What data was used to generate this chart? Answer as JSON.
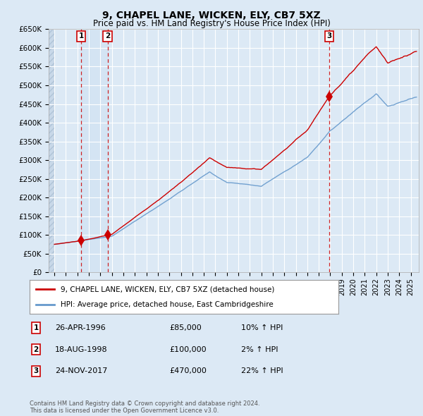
{
  "title": "9, CHAPEL LANE, WICKEN, ELY, CB7 5XZ",
  "subtitle": "Price paid vs. HM Land Registry's House Price Index (HPI)",
  "title_fontsize": 10,
  "subtitle_fontsize": 8.5,
  "ylim": [
    0,
    650000
  ],
  "yticks": [
    0,
    50000,
    100000,
    150000,
    200000,
    250000,
    300000,
    350000,
    400000,
    450000,
    500000,
    550000,
    600000,
    650000
  ],
  "ytick_labels": [
    "£0",
    "£50K",
    "£100K",
    "£150K",
    "£200K",
    "£250K",
    "£300K",
    "£350K",
    "£400K",
    "£450K",
    "£500K",
    "£550K",
    "£600K",
    "£650K"
  ],
  "xlim_start": 1993.5,
  "xlim_end": 2025.7,
  "background_color": "#dce9f5",
  "plot_bg_color": "#dce9f5",
  "sale_dates_num": [
    1996.32,
    1998.63,
    2017.9
  ],
  "sale_prices": [
    85000,
    100000,
    470000
  ],
  "sale_labels": [
    "1",
    "2",
    "3"
  ],
  "red_line_color": "#cc0000",
  "blue_line_color": "#6699cc",
  "legend_line1": "9, CHAPEL LANE, WICKEN, ELY, CB7 5XZ (detached house)",
  "legend_line2": "HPI: Average price, detached house, East Cambridgeshire",
  "table_rows": [
    [
      "1",
      "26-APR-1996",
      "£85,000",
      "10% ↑ HPI"
    ],
    [
      "2",
      "18-AUG-1998",
      "£100,000",
      "2% ↑ HPI"
    ],
    [
      "3",
      "24-NOV-2017",
      "£470,000",
      "22% ↑ HPI"
    ]
  ],
  "footnote": "Contains HM Land Registry data © Crown copyright and database right 2024.\nThis data is licensed under the Open Government Licence v3.0."
}
